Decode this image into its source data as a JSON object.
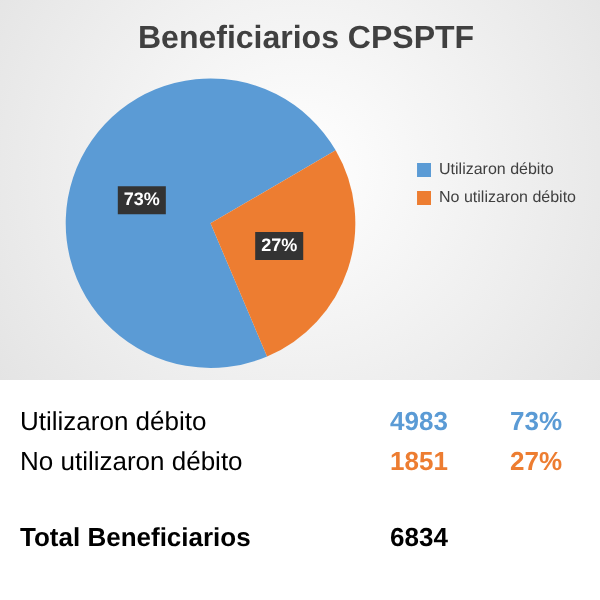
{
  "chart_data": {
    "type": "pie",
    "title": "Beneficiarios CPSPTF",
    "categories": [
      "Utilizaron débito",
      "No utilizaron débito"
    ],
    "values": [
      73,
      27
    ],
    "colors": [
      "#5b9bd5",
      "#ed7d31"
    ],
    "value_labels": [
      "73%",
      "27%"
    ],
    "data_labels": true,
    "legend": "right",
    "annotations": [
      "4983",
      "1851",
      "Total Beneficiarios",
      "6834"
    ]
  }
}
